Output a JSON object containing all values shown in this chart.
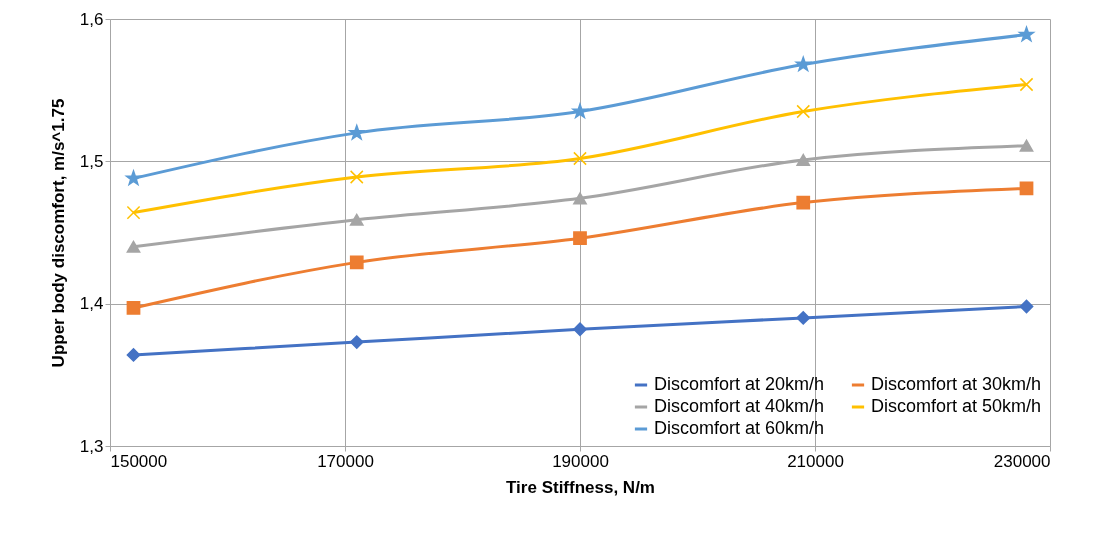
{
  "chart_data": {
    "type": "line",
    "xlabel": "Tire Stiffness, N/m",
    "ylabel": "Upper body discomfort, m/s^1.75",
    "x": [
      152000,
      171000,
      190000,
      209000,
      228000
    ],
    "xlim": [
      150000,
      230000
    ],
    "xticks": [
      150000,
      170000,
      190000,
      210000,
      230000
    ],
    "ylim": [
      1.3,
      1.6
    ],
    "yticks": [
      {
        "value": 1.3,
        "label": "1,3"
      },
      {
        "value": 1.4,
        "label": "1,4"
      },
      {
        "value": 1.5,
        "label": "1,5"
      },
      {
        "value": 1.6,
        "label": "1,6"
      }
    ],
    "grid": true,
    "legend": "bottom right",
    "line_style": "solid",
    "series": [
      {
        "name": "Discomfort at 20km/h",
        "color": "#4472c4",
        "marker": "diamond",
        "values": [
          1.364,
          1.373,
          1.382,
          1.39,
          1.398
        ]
      },
      {
        "name": "Discomfort at 30km/h",
        "color": "#ed7d31",
        "marker": "square",
        "values": [
          1.397,
          1.429,
          1.446,
          1.471,
          1.481
        ]
      },
      {
        "name": "Discomfort at 40km/h",
        "color": "#a5a5a5",
        "marker": "triangle",
        "values": [
          1.44,
          1.459,
          1.474,
          1.501,
          1.511
        ]
      },
      {
        "name": "Discomfort at 50km/h",
        "color": "#ffc000",
        "marker": "cross",
        "values": [
          1.464,
          1.489,
          1.502,
          1.535,
          1.554
        ]
      },
      {
        "name": "Discomfort at 60km/h",
        "color": "#5b9bd5",
        "marker": "star",
        "values": [
          1.488,
          1.52,
          1.535,
          1.568,
          1.589
        ]
      }
    ]
  }
}
